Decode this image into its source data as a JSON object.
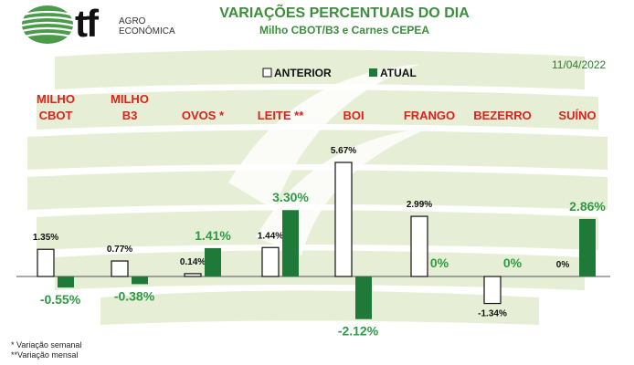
{
  "header": {
    "logo_mark": "tf",
    "logo_line1": "AGRO",
    "logo_line2": "ECONÔMICA",
    "title": "VARIAÇÕES PERCENTUAIS DO DIA",
    "subtitle": "Milho CBOT/B3 e Carnes CEPEA",
    "date": "11/04/2022"
  },
  "colors": {
    "title": "#3d8d3d",
    "category_label": "#e0201b",
    "atual_bar": "#1f7a3a",
    "atual_label": "#2e9a44",
    "anterior_fill": "#ffffff",
    "bar_outline": "#111111",
    "background_band": "#e6efd6"
  },
  "footnotes": [
    "* Variação semanal",
    "**Variação mensal"
  ],
  "chart_data": {
    "type": "bar",
    "categories": [
      [
        "MILHO",
        "CBOT"
      ],
      [
        "MILHO",
        "B3"
      ],
      [
        "OVOS *"
      ],
      [
        "LEITE **"
      ],
      [
        "BOI"
      ],
      [
        "FRANGO"
      ],
      [
        "BEZERRO"
      ],
      [
        "SUÍNO"
      ]
    ],
    "legend": [
      "ANTERIOR",
      "ATUAL"
    ],
    "legend_position": "top",
    "series": [
      {
        "name": "ANTERIOR",
        "values": [
          1.35,
          0.77,
          0.14,
          1.44,
          5.67,
          2.99,
          -1.34,
          0
        ],
        "labels": [
          "1.35%",
          "0.77%",
          "0.14%",
          "1.44%",
          "5.67%",
          "2.99%",
          "-1.34%",
          "0%"
        ]
      },
      {
        "name": "ATUAL",
        "values": [
          -0.55,
          -0.38,
          1.41,
          3.3,
          -2.12,
          0,
          0,
          2.86
        ],
        "labels": [
          "-0.55%",
          "-0.38%",
          "1.41%",
          "3.30%",
          "-2.12%",
          "0%",
          "0%",
          "2.86%"
        ]
      }
    ],
    "ylim": [
      -2.5,
      6
    ],
    "grid": false
  }
}
